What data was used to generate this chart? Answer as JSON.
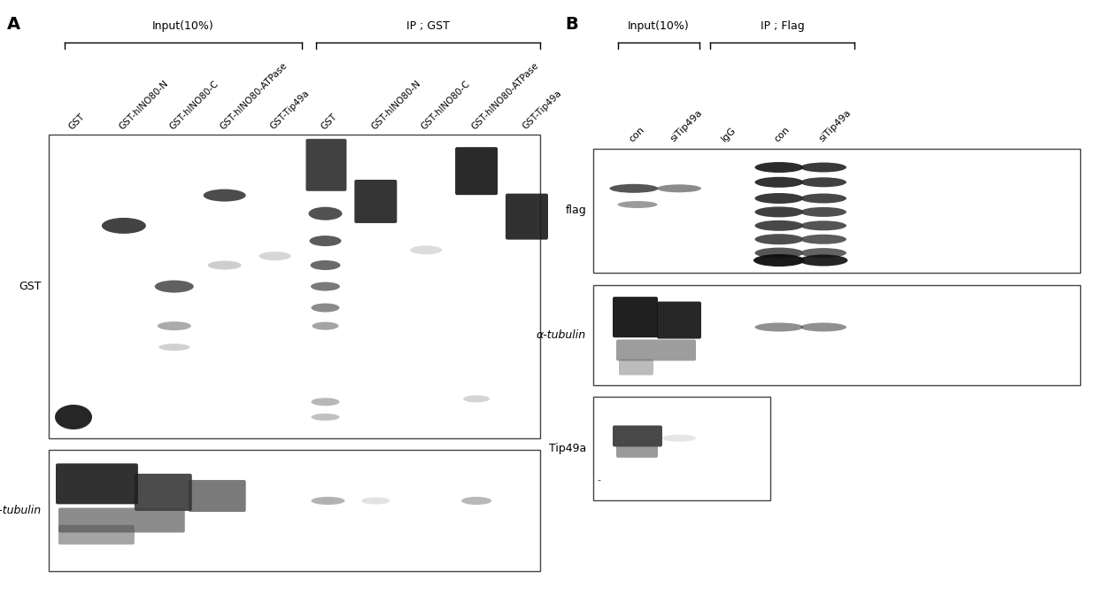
{
  "bg_color": "#ffffff",
  "figsize": [
    12.39,
    6.9
  ],
  "dpi": 100,
  "panel_A": {
    "label": "A",
    "bracket_input_label": "Input(10%)",
    "bracket_ip_label": "IP ; GST",
    "col_labels": [
      "GST",
      "GST-hINO80-N",
      "GST-hINO80-C",
      "GST-hINO80-ATPase",
      "GST-Tip49a",
      "GST",
      "GST-hINO80-N",
      "GST-hINO80-C",
      "GST-hINO80-ATPase",
      "GST-Tip49a"
    ],
    "row_labels": [
      "GST",
      "α-tubulin"
    ]
  },
  "panel_B": {
    "label": "B",
    "bracket_input_label": "Input(10%)",
    "bracket_ip_label": "IP ; Flag",
    "col_labels": [
      "con",
      "siTip49a",
      "IgG",
      "con",
      "siTip49a"
    ],
    "row_labels": [
      "flag",
      "α-tubulin",
      "Tip49a"
    ]
  }
}
